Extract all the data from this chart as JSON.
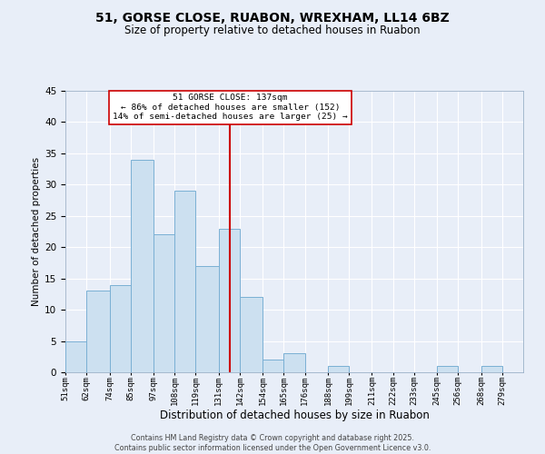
{
  "title": "51, GORSE CLOSE, RUABON, WREXHAM, LL14 6BZ",
  "subtitle": "Size of property relative to detached houses in Ruabon",
  "xlabel": "Distribution of detached houses by size in Ruabon",
  "ylabel": "Number of detached properties",
  "bin_labels": [
    "51sqm",
    "62sqm",
    "74sqm",
    "85sqm",
    "97sqm",
    "108sqm",
    "119sqm",
    "131sqm",
    "142sqm",
    "154sqm",
    "165sqm",
    "176sqm",
    "188sqm",
    "199sqm",
    "211sqm",
    "222sqm",
    "233sqm",
    "245sqm",
    "256sqm",
    "268sqm",
    "279sqm"
  ],
  "bin_edges": [
    51,
    62,
    74,
    85,
    97,
    108,
    119,
    131,
    142,
    154,
    165,
    176,
    188,
    199,
    211,
    222,
    233,
    245,
    256,
    268,
    279
  ],
  "bar_heights": [
    5,
    13,
    14,
    34,
    22,
    29,
    17,
    23,
    12,
    2,
    3,
    0,
    1,
    0,
    0,
    0,
    0,
    1,
    0,
    1,
    0
  ],
  "bar_color": "#cce0f0",
  "bar_edge_color": "#7ab0d4",
  "property_line_x": 137,
  "property_line_color": "#cc0000",
  "annotation_title": "51 GORSE CLOSE: 137sqm",
  "annotation_line1": "← 86% of detached houses are smaller (152)",
  "annotation_line2": "14% of semi-detached houses are larger (25) →",
  "annotation_box_color": "#ffffff",
  "annotation_box_edge_color": "#cc0000",
  "ylim": [
    0,
    45
  ],
  "yticks": [
    0,
    5,
    10,
    15,
    20,
    25,
    30,
    35,
    40,
    45
  ],
  "bg_color": "#e8eef8",
  "footer1": "Contains HM Land Registry data © Crown copyright and database right 2025.",
  "footer2": "Contains public sector information licensed under the Open Government Licence v3.0."
}
